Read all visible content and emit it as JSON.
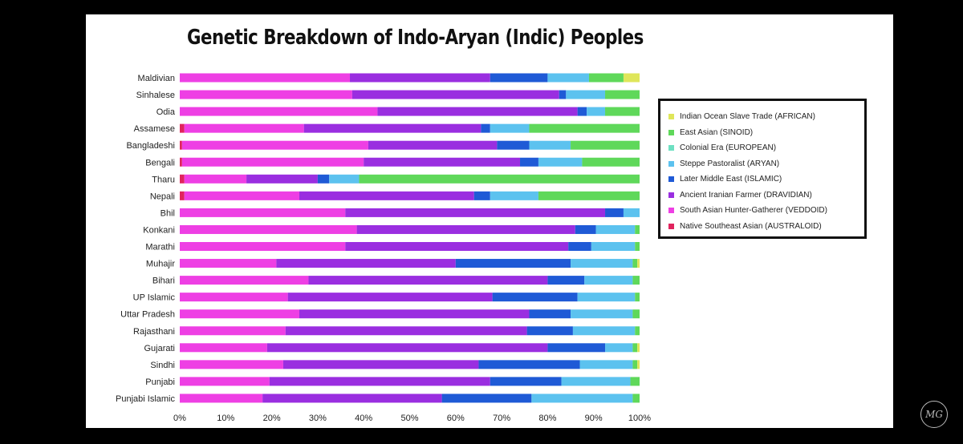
{
  "chart_data": {
    "type": "bar",
    "orientation": "horizontal",
    "stacked": "percent",
    "title": "Genetic Breakdown of Indo-Aryan (Indic) Peoples",
    "xlim": [
      0,
      100
    ],
    "x_ticks": [
      "0%",
      "10%",
      "20%",
      "30%",
      "40%",
      "50%",
      "60%",
      "70%",
      "80%",
      "90%",
      "100%"
    ],
    "grid": false,
    "legend_position": "right",
    "categories": [
      "Maldivian",
      "Sinhalese",
      "Odia",
      "Assamese",
      "Bangladeshi",
      "Bengali",
      "Tharu",
      "Nepali",
      "Bhil",
      "Konkani",
      "Marathi",
      "Muhajir",
      "Bihari",
      "UP Islamic",
      "Uttar Pradesh",
      "Rajasthani",
      "Gujarati",
      "Sindhi",
      "Punjabi",
      "Punjabi Islamic"
    ],
    "series": [
      {
        "name": "Native Southeast Asian (AUSTRALOID)",
        "color": "#e0245e",
        "values": [
          0,
          0,
          0,
          1,
          0.5,
          0.5,
          1,
          1,
          0,
          0,
          0,
          0,
          0,
          0,
          0,
          0,
          0,
          0,
          0,
          0
        ]
      },
      {
        "name": "South Asian Hunter-Gatherer (VEDDOID)",
        "color": "#ee3fe4",
        "values": [
          37,
          37.5,
          43,
          26,
          40.5,
          39.5,
          13.5,
          25,
          36,
          38.5,
          36,
          21,
          28,
          23.5,
          26,
          23,
          19,
          22.5,
          19.5,
          18
        ]
      },
      {
        "name": "Ancient Iranian Farmer (DRAVIDIAN)",
        "color": "#9a2ee0",
        "values": [
          30.5,
          45,
          43.5,
          38.5,
          28,
          34,
          15.5,
          38,
          56.5,
          47.5,
          48.5,
          39,
          52,
          44.5,
          50,
          52.5,
          61,
          42.5,
          48,
          39
        ]
      },
      {
        "name": "Later Middle East (ISLAMIC)",
        "color": "#1f5ad6",
        "values": [
          12.5,
          1.5,
          2,
          2,
          7,
          4,
          2.5,
          3.5,
          4,
          4.5,
          5,
          25,
          8,
          18.5,
          9,
          10,
          12.5,
          22,
          15.5,
          19.5
        ]
      },
      {
        "name": "Steppe Pastoralist (ARYAN)",
        "color": "#5cc2ef",
        "values": [
          9,
          8.5,
          4,
          8.5,
          9,
          9.5,
          6.5,
          10.5,
          3.5,
          8.5,
          9.5,
          13.5,
          10.5,
          12.5,
          13.5,
          13.5,
          6,
          11.5,
          15,
          22
        ]
      },
      {
        "name": "Colonial Era (EUROPEAN)",
        "color": "#6ee0c2",
        "values": [
          0,
          0,
          0,
          0,
          0,
          0,
          0,
          0,
          0,
          0,
          0,
          0,
          0,
          0,
          0,
          0,
          0,
          0,
          0,
          0
        ]
      },
      {
        "name": "East Asian (SINOID)",
        "color": "#5fd85a",
        "values": [
          7.5,
          7.5,
          7.5,
          24,
          15,
          12.5,
          61,
          22,
          0,
          1,
          1,
          1,
          1.5,
          1,
          1.5,
          1,
          1,
          1,
          2,
          1.5
        ]
      },
      {
        "name": "Indian Ocean Slave Trade (AFRICAN)",
        "color": "#dfe65a",
        "values": [
          3.5,
          0,
          0,
          0,
          0,
          0,
          0,
          0,
          0,
          0,
          0,
          0.5,
          0,
          0,
          0,
          0,
          0.5,
          0.5,
          0,
          0
        ]
      }
    ]
  },
  "legend_items": [
    {
      "label": "Indian Ocean Slave Trade (AFRICAN)",
      "color": "#dfe65a"
    },
    {
      "label": "East Asian (SINOID)",
      "color": "#5fd85a"
    },
    {
      "label": "Colonial Era (EUROPEAN)",
      "color": "#6ee0c2"
    },
    {
      "label": "Steppe Pastoralist (ARYAN)",
      "color": "#5cc2ef"
    },
    {
      "label": "Later Middle East (ISLAMIC)",
      "color": "#1f5ad6"
    },
    {
      "label": "Ancient Iranian Farmer (DRAVIDIAN)",
      "color": "#9a2ee0"
    },
    {
      "label": "South Asian Hunter-Gatherer (VEDDOID)",
      "color": "#ee3fe4"
    },
    {
      "label": "Native Southeast Asian (AUSTRALOID)",
      "color": "#e0245e"
    }
  ],
  "logo": {
    "icon": "monogram-logo-icon",
    "text": "MG"
  }
}
